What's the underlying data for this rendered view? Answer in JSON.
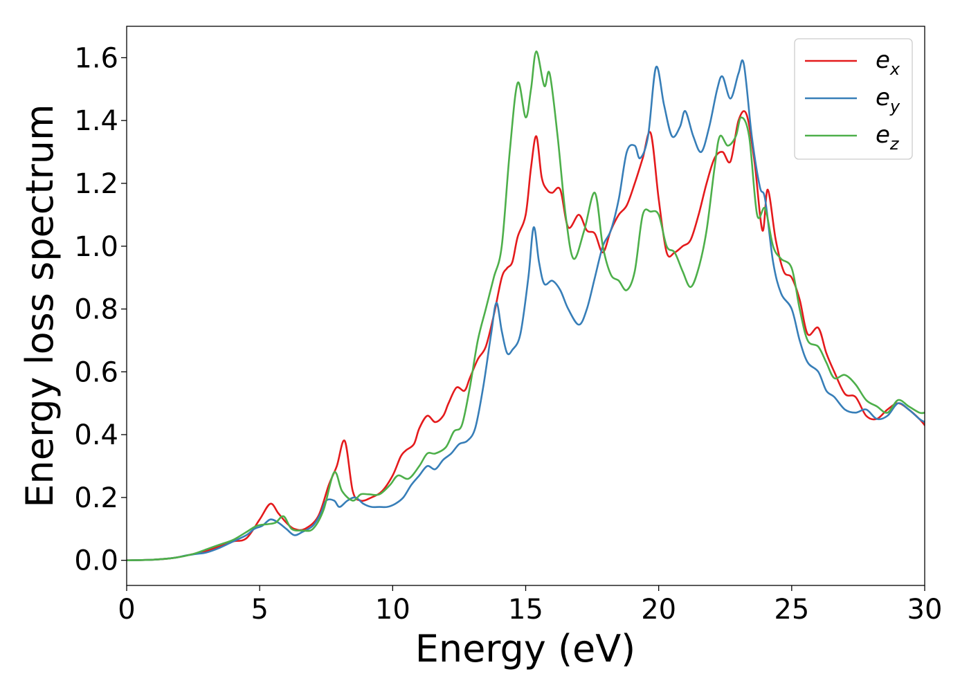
{
  "chart_data": {
    "type": "line",
    "title": "",
    "xlabel": "Energy (eV)",
    "ylabel": "Energy loss spectrum",
    "xlim": [
      0,
      30
    ],
    "ylim": [
      -0.08,
      1.7
    ],
    "xticks": [
      0,
      5,
      10,
      15,
      20,
      25,
      30
    ],
    "yticks": [
      0.0,
      0.2,
      0.4,
      0.6,
      0.8,
      1.0,
      1.2,
      1.4,
      1.6
    ],
    "xtick_labels": [
      "0",
      "5",
      "10",
      "15",
      "20",
      "25",
      "30"
    ],
    "ytick_labels": [
      "0.0",
      "0.2",
      "0.4",
      "0.6",
      "0.8",
      "1.0",
      "1.2",
      "1.4",
      "1.6"
    ],
    "grid": false,
    "legend_position": "top-right",
    "series": [
      {
        "name": "e_x",
        "legend_main": "e",
        "legend_sub": "x",
        "color": "#e41a1c",
        "x": [
          0,
          1,
          1.8,
          2.5,
          3.0,
          3.5,
          4.0,
          4.5,
          5.0,
          5.4,
          5.7,
          6.0,
          6.3,
          6.7,
          7.2,
          7.6,
          7.9,
          8.2,
          8.5,
          8.8,
          9.2,
          9.6,
          10.0,
          10.3,
          10.5,
          10.8,
          11.0,
          11.3,
          11.6,
          11.9,
          12.1,
          12.4,
          12.7,
          12.9,
          13.2,
          13.5,
          13.8,
          14.1,
          14.3,
          14.5,
          14.7,
          15.0,
          15.2,
          15.4,
          15.6,
          15.8,
          16.0,
          16.3,
          16.6,
          17.0,
          17.3,
          17.6,
          17.9,
          18.2,
          18.5,
          18.8,
          19.1,
          19.4,
          19.7,
          20.0,
          20.3,
          20.6,
          20.9,
          21.2,
          21.5,
          21.8,
          22.1,
          22.4,
          22.7,
          23.0,
          23.3,
          23.6,
          23.9,
          24.1,
          24.4,
          24.7,
          25.0,
          25.3,
          25.6,
          26.0,
          26.3,
          26.6,
          27.0,
          27.4,
          27.8,
          28.2,
          28.6,
          29.0,
          29.4,
          29.8,
          30.0
        ],
        "y": [
          0.0,
          0.002,
          0.008,
          0.02,
          0.03,
          0.045,
          0.06,
          0.07,
          0.13,
          0.18,
          0.15,
          0.12,
          0.1,
          0.1,
          0.14,
          0.24,
          0.3,
          0.38,
          0.22,
          0.19,
          0.2,
          0.22,
          0.27,
          0.33,
          0.35,
          0.37,
          0.42,
          0.46,
          0.44,
          0.46,
          0.5,
          0.55,
          0.54,
          0.58,
          0.64,
          0.68,
          0.78,
          0.9,
          0.93,
          0.95,
          1.03,
          1.1,
          1.25,
          1.35,
          1.22,
          1.18,
          1.17,
          1.18,
          1.06,
          1.1,
          1.05,
          1.04,
          0.98,
          1.05,
          1.1,
          1.13,
          1.2,
          1.28,
          1.36,
          1.15,
          0.98,
          0.98,
          1.0,
          1.02,
          1.1,
          1.2,
          1.28,
          1.3,
          1.27,
          1.4,
          1.42,
          1.27,
          1.05,
          1.18,
          1.02,
          0.92,
          0.9,
          0.83,
          0.72,
          0.74,
          0.66,
          0.6,
          0.53,
          0.52,
          0.46,
          0.45,
          0.48,
          0.5,
          0.48,
          0.45,
          0.43
        ]
      },
      {
        "name": "e_y",
        "legend_main": "e",
        "legend_sub": "y",
        "color": "#377eb8",
        "x": [
          0,
          1,
          1.8,
          2.2,
          2.6,
          3.0,
          3.5,
          4.0,
          4.5,
          4.8,
          5.1,
          5.4,
          5.7,
          6.0,
          6.3,
          6.6,
          7.0,
          7.3,
          7.5,
          7.8,
          8.0,
          8.3,
          8.6,
          8.9,
          9.2,
          9.5,
          9.8,
          10.1,
          10.4,
          10.7,
          11.0,
          11.3,
          11.6,
          11.9,
          12.2,
          12.5,
          12.8,
          13.1,
          13.4,
          13.7,
          13.9,
          14.1,
          14.3,
          14.5,
          14.8,
          15.1,
          15.3,
          15.5,
          15.7,
          16.0,
          16.3,
          16.6,
          17.0,
          17.3,
          17.6,
          17.9,
          18.2,
          18.5,
          18.8,
          19.1,
          19.3,
          19.6,
          19.9,
          20.2,
          20.5,
          20.8,
          21.0,
          21.3,
          21.6,
          21.9,
          22.2,
          22.4,
          22.7,
          23.0,
          23.2,
          23.5,
          23.8,
          24.0,
          24.3,
          24.6,
          25.0,
          25.3,
          25.6,
          26.0,
          26.3,
          26.6,
          27.0,
          27.4,
          27.8,
          28.2,
          28.6,
          29.0,
          29.4,
          29.8,
          30.0
        ],
        "y": [
          0.0,
          0.002,
          0.008,
          0.015,
          0.02,
          0.025,
          0.04,
          0.06,
          0.08,
          0.1,
          0.11,
          0.13,
          0.12,
          0.1,
          0.08,
          0.09,
          0.11,
          0.15,
          0.19,
          0.19,
          0.17,
          0.19,
          0.2,
          0.18,
          0.17,
          0.17,
          0.17,
          0.18,
          0.2,
          0.24,
          0.27,
          0.3,
          0.29,
          0.32,
          0.34,
          0.37,
          0.38,
          0.42,
          0.55,
          0.72,
          0.82,
          0.73,
          0.66,
          0.67,
          0.72,
          0.9,
          1.06,
          0.95,
          0.88,
          0.89,
          0.86,
          0.8,
          0.75,
          0.8,
          0.9,
          1.0,
          1.05,
          1.15,
          1.3,
          1.32,
          1.28,
          1.35,
          1.57,
          1.45,
          1.35,
          1.38,
          1.43,
          1.35,
          1.3,
          1.38,
          1.5,
          1.54,
          1.47,
          1.55,
          1.58,
          1.35,
          1.19,
          1.15,
          0.95,
          0.85,
          0.8,
          0.7,
          0.63,
          0.6,
          0.54,
          0.52,
          0.48,
          0.47,
          0.48,
          0.45,
          0.46,
          0.5,
          0.48,
          0.45,
          0.44
        ]
      },
      {
        "name": "e_z",
        "legend_main": "e",
        "legend_sub": "z",
        "color": "#4daf4a",
        "x": [
          0,
          1,
          1.8,
          2.5,
          3.0,
          3.5,
          4.0,
          4.5,
          4.9,
          5.3,
          5.6,
          5.9,
          6.2,
          6.6,
          7.0,
          7.4,
          7.8,
          8.1,
          8.5,
          8.8,
          9.1,
          9.5,
          9.9,
          10.2,
          10.6,
          11.0,
          11.3,
          11.6,
          12.0,
          12.3,
          12.6,
          12.9,
          13.2,
          13.5,
          13.8,
          14.1,
          14.4,
          14.7,
          15.0,
          15.2,
          15.4,
          15.7,
          15.9,
          16.2,
          16.5,
          16.8,
          17.2,
          17.6,
          17.9,
          18.2,
          18.5,
          18.8,
          19.1,
          19.4,
          19.7,
          20.0,
          20.3,
          20.6,
          20.9,
          21.2,
          21.5,
          21.8,
          22.1,
          22.3,
          22.6,
          22.9,
          23.1,
          23.4,
          23.7,
          24.0,
          24.3,
          24.6,
          25.0,
          25.3,
          25.6,
          26.0,
          26.3,
          26.6,
          27.0,
          27.4,
          27.8,
          28.2,
          28.6,
          29.0,
          29.4,
          29.8,
          30.0
        ],
        "y": [
          0.0,
          0.002,
          0.008,
          0.02,
          0.035,
          0.05,
          0.065,
          0.09,
          0.11,
          0.115,
          0.12,
          0.14,
          0.1,
          0.095,
          0.1,
          0.16,
          0.28,
          0.22,
          0.19,
          0.21,
          0.21,
          0.21,
          0.24,
          0.27,
          0.26,
          0.3,
          0.34,
          0.34,
          0.36,
          0.41,
          0.43,
          0.55,
          0.7,
          0.8,
          0.9,
          1.0,
          1.3,
          1.52,
          1.41,
          1.5,
          1.62,
          1.51,
          1.55,
          1.35,
          1.1,
          0.96,
          1.05,
          1.17,
          1.0,
          0.91,
          0.89,
          0.86,
          0.92,
          1.1,
          1.11,
          1.1,
          1.0,
          0.98,
          0.92,
          0.87,
          0.93,
          1.05,
          1.25,
          1.35,
          1.32,
          1.35,
          1.41,
          1.35,
          1.1,
          1.12,
          1.0,
          0.96,
          0.93,
          0.8,
          0.7,
          0.68,
          0.63,
          0.58,
          0.59,
          0.56,
          0.51,
          0.49,
          0.47,
          0.51,
          0.49,
          0.47,
          0.47
        ]
      }
    ]
  }
}
